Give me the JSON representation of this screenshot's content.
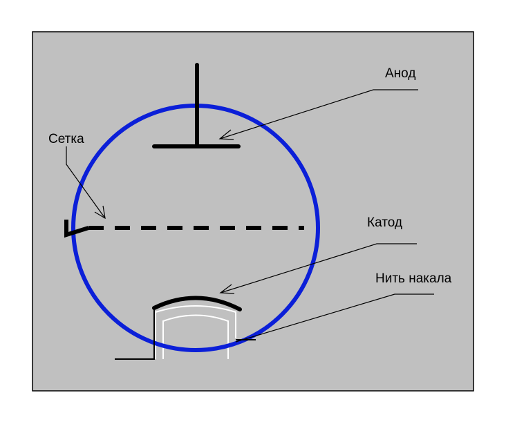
{
  "labels": {
    "anode": "Анод",
    "grid": "Сетка",
    "cathode": "Катод",
    "filament": "Нить накала"
  },
  "colors": {
    "background": "#c0c0c0",
    "frame": "#000000",
    "bulb": "#0b1fd8",
    "electrode": "#000000",
    "heater": "#ffffff"
  }
}
